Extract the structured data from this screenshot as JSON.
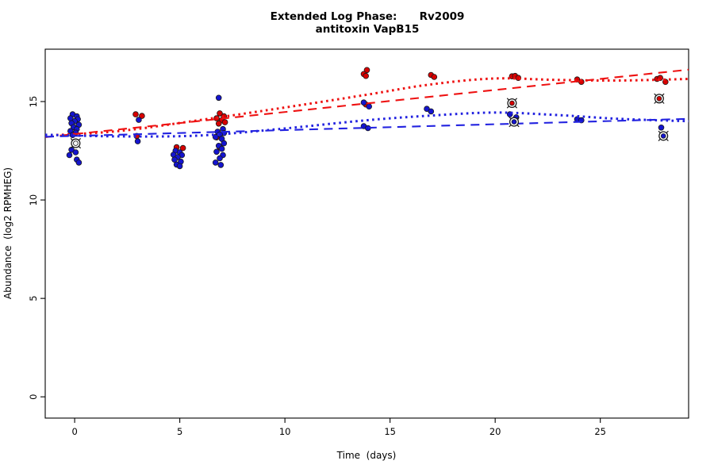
{
  "title": {
    "line1": "Extended Log Phase:      Rv2009",
    "line2": "antitoxin VapB15"
  },
  "colors": {
    "red_points": "#d80000",
    "blue_points": "#1414cf",
    "red_line": "#ee1111",
    "blue_line": "#2222e0",
    "point_edge": "#1a1a1a",
    "axis": "#000000",
    "circled_marker_ring": "#1a1a1a",
    "open_marker_fill": "#f5f5f5"
  },
  "chart_data": {
    "type": "scatter",
    "title": "Extended Log Phase:      Rv2009",
    "subtitle": "antitoxin VapB15",
    "xlabel": "Time  (days)",
    "ylabel": "Abundance  (log2 RPMHEG)",
    "xlim": [
      -1.4,
      29.2
    ],
    "ylim": [
      -1.08,
      17.66
    ],
    "x_ticks": [
      0,
      5,
      10,
      15,
      20,
      25
    ],
    "y_ticks": [
      0,
      5,
      10,
      15
    ],
    "grid": "off",
    "legend": "none",
    "series": [
      {
        "name": "red-samples",
        "marker": "filled-circle",
        "color_key": "red_points",
        "points": [
          [
            2.9,
            14.35
          ],
          [
            3.2,
            14.27
          ],
          [
            2.95,
            13.25
          ],
          [
            4.85,
            12.68
          ],
          [
            5.15,
            12.64
          ],
          [
            6.9,
            14.4
          ],
          [
            7.1,
            14.25
          ],
          [
            6.75,
            14.15
          ],
          [
            7.0,
            14.05
          ],
          [
            7.15,
            13.95
          ],
          [
            6.85,
            13.88
          ],
          [
            6.75,
            13.18
          ],
          [
            6.9,
            12.68
          ],
          [
            13.9,
            16.6
          ],
          [
            13.75,
            16.4
          ],
          [
            13.85,
            16.3
          ],
          [
            13.85,
            14.85
          ],
          [
            16.95,
            16.35
          ],
          [
            17.1,
            16.25
          ],
          [
            20.8,
            16.28
          ],
          [
            20.95,
            16.3
          ],
          [
            21.1,
            16.2
          ],
          [
            23.9,
            16.12
          ],
          [
            24.1,
            16.0
          ],
          [
            27.7,
            16.15
          ],
          [
            27.85,
            16.2
          ],
          [
            28.1,
            16.0
          ]
        ]
      },
      {
        "name": "blue-samples",
        "marker": "filled-circle",
        "color_key": "blue_points",
        "points": [
          [
            -0.1,
            14.35
          ],
          [
            0.1,
            14.25
          ],
          [
            -0.2,
            14.15
          ],
          [
            0.15,
            14.1
          ],
          [
            0.0,
            14.0
          ],
          [
            -0.15,
            13.9
          ],
          [
            0.2,
            13.82
          ],
          [
            -0.05,
            13.7
          ],
          [
            0.1,
            13.6
          ],
          [
            -0.2,
            13.5
          ],
          [
            0.05,
            13.42
          ],
          [
            -0.1,
            13.3
          ],
          [
            -0.15,
            12.55
          ],
          [
            0.05,
            12.42
          ],
          [
            -0.25,
            12.28
          ],
          [
            0.1,
            12.05
          ],
          [
            0.2,
            11.9
          ],
          [
            3.05,
            14.07
          ],
          [
            3.0,
            12.98
          ],
          [
            4.8,
            12.5
          ],
          [
            5.0,
            12.42
          ],
          [
            4.7,
            12.3
          ],
          [
            5.1,
            12.28
          ],
          [
            4.9,
            12.18
          ],
          [
            4.75,
            12.05
          ],
          [
            5.05,
            11.95
          ],
          [
            4.85,
            11.8
          ],
          [
            5.0,
            11.72
          ],
          [
            6.85,
            15.19
          ],
          [
            7.05,
            13.6
          ],
          [
            6.8,
            13.47
          ],
          [
            7.1,
            13.4
          ],
          [
            6.9,
            13.33
          ],
          [
            6.7,
            13.2
          ],
          [
            7.0,
            13.1
          ],
          [
            7.1,
            12.88
          ],
          [
            6.85,
            12.75
          ],
          [
            7.0,
            12.6
          ],
          [
            6.75,
            12.45
          ],
          [
            7.05,
            12.28
          ],
          [
            6.9,
            12.12
          ],
          [
            6.7,
            11.9
          ],
          [
            6.95,
            11.78
          ],
          [
            13.75,
            14.95
          ],
          [
            14.0,
            14.75
          ],
          [
            13.75,
            13.75
          ],
          [
            13.95,
            13.65
          ],
          [
            16.75,
            14.63
          ],
          [
            16.95,
            14.5
          ],
          [
            20.7,
            14.35
          ],
          [
            21.0,
            14.2
          ],
          [
            23.9,
            14.1
          ],
          [
            24.1,
            14.05
          ],
          [
            27.9,
            13.68
          ]
        ]
      },
      {
        "name": "red-samples-flagged",
        "marker": "circle-cross-outline",
        "color_key": "red_points",
        "points": [
          [
            20.8,
            14.92
          ],
          [
            27.8,
            15.15
          ]
        ]
      },
      {
        "name": "blue-samples-flagged",
        "marker": "circle-cross-outline",
        "color_key": "blue_points",
        "points": [
          [
            20.9,
            13.97
          ],
          [
            28.0,
            13.25
          ]
        ]
      },
      {
        "name": "open-flagged",
        "marker": "circle-cross-outline",
        "color_key": "open_marker_fill",
        "points": [
          [
            0.05,
            12.88
          ]
        ]
      }
    ],
    "trend_lines": [
      {
        "name": "red-lowess-fit",
        "style": "dotted",
        "color_key": "red_line",
        "points": [
          [
            -1.4,
            13.27
          ],
          [
            2.1,
            13.5
          ],
          [
            5.9,
            14.05
          ],
          [
            9.7,
            14.65
          ],
          [
            13.8,
            15.33
          ],
          [
            16.8,
            15.85
          ],
          [
            19.9,
            16.17
          ],
          [
            22.9,
            16.1
          ],
          [
            25.9,
            16.07
          ],
          [
            29.2,
            16.15
          ]
        ]
      },
      {
        "name": "red-linear-fit",
        "style": "dashed",
        "color_key": "red_line",
        "points": [
          [
            -1.4,
            13.19
          ],
          [
            29.2,
            16.62
          ]
        ]
      },
      {
        "name": "blue-lowess-fit",
        "style": "dotted",
        "color_key": "blue_line",
        "points": [
          [
            -1.4,
            13.31
          ],
          [
            2.1,
            13.23
          ],
          [
            5.9,
            13.27
          ],
          [
            9.7,
            13.6
          ],
          [
            13.8,
            14.04
          ],
          [
            16.8,
            14.28
          ],
          [
            19.9,
            14.44
          ],
          [
            22.9,
            14.32
          ],
          [
            25.9,
            14.12
          ],
          [
            29.2,
            14.0
          ]
        ]
      },
      {
        "name": "blue-linear-fit",
        "style": "dashed",
        "color_key": "blue_line",
        "points": [
          [
            -1.4,
            13.21
          ],
          [
            29.2,
            14.12
          ]
        ]
      }
    ]
  }
}
